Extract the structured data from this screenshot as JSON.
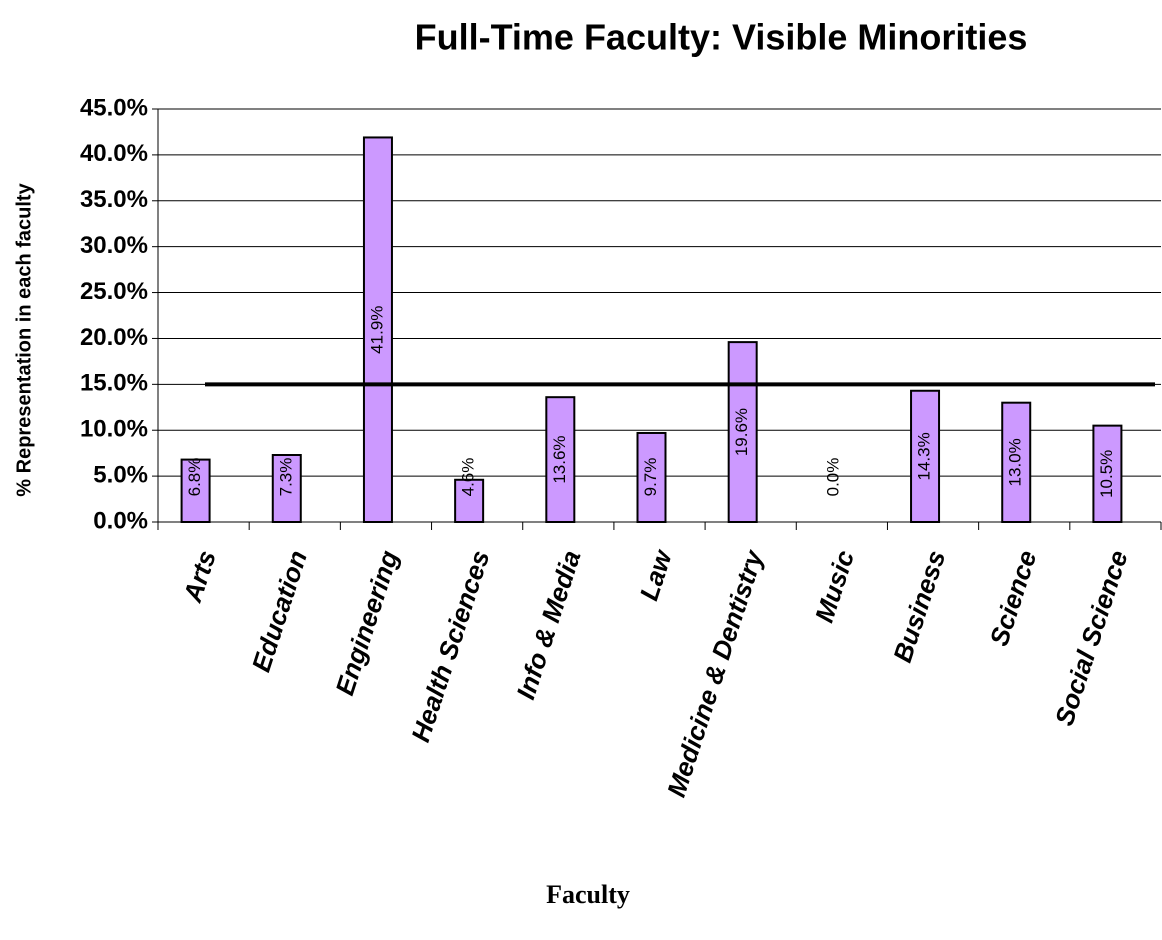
{
  "chart_data": {
    "type": "bar",
    "title": "Full-Time Faculty: Visible Minorities",
    "y_label": "% Representation in each faculty",
    "x_label": "Faculty",
    "categories": [
      "Arts",
      "Education",
      "Engineering",
      "Health Sciences",
      "Info & Media",
      "Law",
      "Medicine & Dentistry",
      "Music",
      "Business",
      "Science",
      "Social Science"
    ],
    "values": [
      6.8,
      7.3,
      41.9,
      4.6,
      13.6,
      9.7,
      19.6,
      0.0,
      14.3,
      13.0,
      10.5
    ],
    "value_labels": [
      "6.8%",
      "7.3%",
      "41.9%",
      "4.6%",
      "13.6%",
      "9.7%",
      "19.6%",
      "0.0%",
      "14.3%",
      "13.0%",
      "10.5%"
    ],
    "color": "#cc99ff",
    "reference_line": {
      "value": 15
    },
    "ylim": [
      0,
      45
    ],
    "yticks": [
      {
        "value": 0,
        "label": "0.0%"
      },
      {
        "value": 5,
        "label": "5.0%"
      },
      {
        "value": 10,
        "label": "10.0%"
      },
      {
        "value": 15,
        "label": "15.0%"
      },
      {
        "value": 20,
        "label": "20.0%"
      },
      {
        "value": 25,
        "label": "25.0%"
      },
      {
        "value": 30,
        "label": "30.0%"
      },
      {
        "value": 35,
        "label": "35.0%"
      },
      {
        "value": 40,
        "label": "40.0%"
      },
      {
        "value": 45,
        "label": "45.0%"
      }
    ],
    "grid": true
  }
}
